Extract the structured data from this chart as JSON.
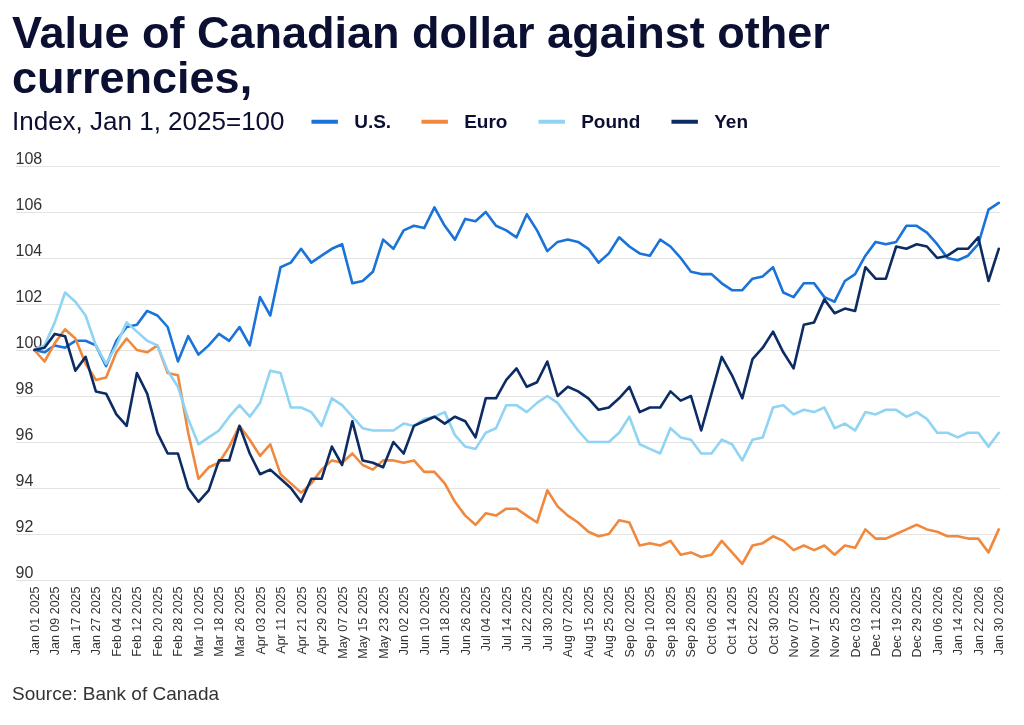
{
  "chart_data": {
    "type": "line",
    "title": "Value of Canadian dollar against other currencies,",
    "subtitle": "Index, Jan 1, 2025=100",
    "annotations": [
      "Source: Bank of Canada"
    ],
    "categories": [
      "Jan 01 2025",
      null,
      "Jan 09 2025",
      null,
      "Jan 17 2025",
      null,
      "Jan 27 2025",
      null,
      "Feb 04 2025",
      null,
      "Feb 12 2025",
      null,
      "Feb 20 2025",
      null,
      "Feb 28 2025",
      null,
      "Mar 10 2025",
      null,
      "Mar 18 2025",
      null,
      "Mar 26 2025",
      null,
      "Apr 03 2025",
      null,
      "Apr 11 2025",
      null,
      "Apr 21 2025",
      null,
      "Apr 29 2025",
      null,
      "May 07 2025",
      null,
      "May 15 2025",
      null,
      "May 23 2025",
      null,
      "Jun 02 2025",
      null,
      "Jun 10 2025",
      null,
      "Jun 18 2025",
      null,
      "Jun 26 2025",
      null,
      "Jul 04 2025",
      null,
      "Jul 14 2025",
      null,
      "Jul 22 2025",
      null,
      "Jul 30 2025",
      null,
      "Aug 07 2025",
      null,
      "Aug 15 2025",
      null,
      "Aug 25 2025",
      null,
      "Sep 02 2025",
      null,
      "Sep 10 2025",
      null,
      "Sep 18 2025",
      null,
      "Sep 26 2025",
      null,
      "Oct 06 2025",
      null,
      "Oct 14 2025",
      null,
      "Oct 22 2025",
      null,
      "Oct 30 2025",
      null,
      "Nov 07 2025",
      null,
      "Nov 17 2025",
      null,
      "Nov 25 2025",
      null,
      "Dec 03 2025",
      null,
      "Dec 11 2025",
      null,
      "Dec 19 2025",
      null,
      "Dec 29 2025",
      null,
      "Jan 06 2026",
      null,
      "Jan 14 2026",
      null,
      "Jan 22 2026",
      null,
      "Jan 30 2026"
    ],
    "ylim": [
      90,
      108
    ],
    "yticks": [
      90,
      92,
      94,
      96,
      98,
      100,
      102,
      104,
      106,
      108
    ],
    "grid": "y",
    "legend": "top",
    "series": [
      {
        "name": "U.S.",
        "color": "#1a73d8",
        "values": [
          100.0,
          99.9,
          100.2,
          100.1,
          100.4,
          100.4,
          100.2,
          99.3,
          100.4,
          101.0,
          101.1,
          101.7,
          101.5,
          101.0,
          99.5,
          100.6,
          99.8,
          100.2,
          100.7,
          100.4,
          101.0,
          100.2,
          102.3,
          101.5,
          103.6,
          103.8,
          104.4,
          103.8,
          104.1,
          104.4,
          104.6,
          102.9,
          103.0,
          103.4,
          104.8,
          104.4,
          105.2,
          105.4,
          105.3,
          106.2,
          105.4,
          104.8,
          105.7,
          105.6,
          106.0,
          105.4,
          105.2,
          104.9,
          105.9,
          105.2,
          104.3,
          104.7,
          104.8,
          104.7,
          104.4,
          103.8,
          104.2,
          104.9,
          104.5,
          104.2,
          104.1,
          104.8,
          104.5,
          104.0,
          103.4,
          103.3,
          103.3,
          102.9,
          102.6,
          102.6,
          103.1,
          103.2,
          103.6,
          102.5,
          102.3,
          102.9,
          102.9,
          102.3,
          102.1,
          103.0,
          103.3,
          104.1,
          104.7,
          104.6,
          104.7,
          105.4,
          105.4,
          105.1,
          104.6,
          104.0,
          103.9,
          104.1,
          104.6,
          106.1,
          106.4
        ]
      },
      {
        "name": "Euro",
        "color": "#f0893e",
        "values": [
          100.0,
          99.5,
          100.3,
          100.9,
          100.5,
          99.4,
          98.7,
          98.8,
          99.9,
          100.5,
          100.0,
          99.9,
          100.2,
          99.0,
          98.9,
          96.4,
          94.4,
          94.9,
          95.1,
          95.8,
          96.7,
          96.1,
          95.4,
          95.9,
          94.6,
          94.2,
          93.8,
          94.2,
          94.8,
          95.2,
          95.1,
          95.5,
          95.0,
          94.8,
          95.2,
          95.2,
          95.1,
          95.2,
          94.7,
          94.7,
          94.2,
          93.4,
          92.8,
          92.4,
          92.9,
          92.8,
          93.1,
          93.1,
          92.8,
          92.5,
          93.9,
          93.2,
          92.8,
          92.5,
          92.1,
          91.9,
          92.0,
          92.6,
          92.5,
          91.5,
          91.6,
          91.5,
          91.7,
          91.1,
          91.2,
          91.0,
          91.1,
          91.7,
          91.2,
          90.7,
          91.5,
          91.6,
          91.9,
          91.7,
          91.3,
          91.5,
          91.3,
          91.5,
          91.1,
          91.5,
          91.4,
          92.2,
          91.8,
          91.8,
          92.0,
          92.2,
          92.4,
          92.2,
          92.1,
          91.9,
          91.9,
          91.8,
          91.8,
          91.2,
          92.2
        ]
      },
      {
        "name": "Pound",
        "color": "#8fd4f2",
        "values": [
          100.0,
          100.2,
          101.2,
          102.5,
          102.1,
          101.5,
          100.2,
          99.4,
          100.2,
          101.2,
          100.8,
          100.4,
          100.2,
          99.1,
          98.4,
          97.0,
          95.9,
          96.2,
          96.5,
          97.1,
          97.6,
          97.1,
          97.7,
          99.1,
          99.0,
          97.5,
          97.5,
          97.3,
          96.7,
          97.9,
          97.6,
          97.1,
          96.6,
          96.5,
          96.5,
          96.5,
          96.8,
          96.7,
          97.0,
          97.1,
          97.3,
          96.3,
          95.8,
          95.7,
          96.4,
          96.6,
          97.6,
          97.6,
          97.3,
          97.7,
          98.0,
          97.7,
          97.1,
          96.5,
          96.0,
          96.0,
          96.0,
          96.4,
          97.1,
          95.9,
          95.7,
          95.5,
          96.6,
          96.2,
          96.1,
          95.5,
          95.5,
          96.1,
          95.9,
          95.2,
          96.1,
          96.2,
          97.5,
          97.6,
          97.2,
          97.4,
          97.3,
          97.5,
          96.6,
          96.8,
          96.5,
          97.3,
          97.2,
          97.4,
          97.4,
          97.1,
          97.3,
          97.0,
          96.4,
          96.4,
          96.2,
          96.4,
          96.4,
          95.8,
          96.4
        ]
      },
      {
        "name": "Yen",
        "color": "#0c2c63",
        "values": [
          100.0,
          100.1,
          100.7,
          100.6,
          99.1,
          99.7,
          98.2,
          98.1,
          97.2,
          96.7,
          99.0,
          98.1,
          96.4,
          95.5,
          95.5,
          94.0,
          93.4,
          93.9,
          95.2,
          95.2,
          96.7,
          95.5,
          94.6,
          94.8,
          94.4,
          94.0,
          93.4,
          94.4,
          94.4,
          95.8,
          95.0,
          96.9,
          95.2,
          95.1,
          94.9,
          96.0,
          95.5,
          96.7,
          96.9,
          97.1,
          96.8,
          97.1,
          96.9,
          96.2,
          97.9,
          97.9,
          98.7,
          99.2,
          98.4,
          98.6,
          99.5,
          98.0,
          98.4,
          98.2,
          97.9,
          97.4,
          97.5,
          97.9,
          98.4,
          97.3,
          97.5,
          97.5,
          98.2,
          97.8,
          98.0,
          96.5,
          98.1,
          99.7,
          98.9,
          97.9,
          99.6,
          100.1,
          100.8,
          99.9,
          99.2,
          101.1,
          101.2,
          102.2,
          101.6,
          101.8,
          101.7,
          103.6,
          103.1,
          103.1,
          104.5,
          104.4,
          104.6,
          104.5,
          104.0,
          104.1,
          104.4,
          104.4,
          104.9,
          103.0,
          104.4
        ]
      }
    ]
  }
}
